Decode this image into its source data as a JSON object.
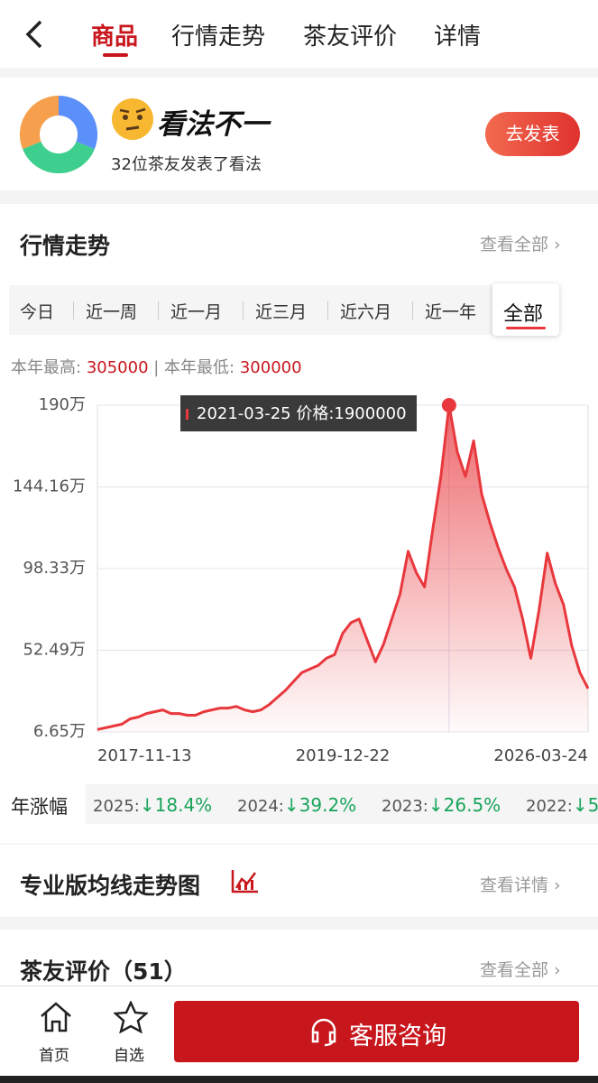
{
  "tabs": [
    "商品",
    "行情走势",
    "茶友评价",
    "详情"
  ],
  "opinion": {
    "title": "看法不一",
    "subtitle": "32位茶友发表了看法",
    "button": "去发表"
  },
  "market": {
    "title": "行情走势",
    "more": "查看全部",
    "ranges": [
      "今日",
      "近一周",
      "近一月",
      "近三月",
      "近六月",
      "近一年",
      "全部"
    ],
    "high_label": "本年最高:",
    "high": 305000,
    "low_label": "本年最低:",
    "low": 300000,
    "chart": {
      "type": "line",
      "color": "#e8383d",
      "categories": [
        "2017-11-13",
        null,
        null,
        null,
        null,
        null,
        null,
        null,
        null,
        null,
        null,
        null,
        null,
        null,
        null,
        null,
        null,
        null,
        null,
        null,
        null,
        null,
        null,
        null,
        null,
        null,
        null,
        null,
        null,
        null,
        "2019-12-22",
        null,
        null,
        null,
        null,
        null,
        null,
        null,
        null,
        null,
        null,
        null,
        null,
        null,
        null,
        null,
        null,
        null,
        null,
        null,
        null,
        null,
        null,
        null,
        null,
        null,
        null,
        null,
        null,
        null,
        "2026-03-24"
      ],
      "values": [
        8,
        9,
        10,
        11,
        14,
        15,
        17,
        18,
        19,
        17,
        17,
        16,
        16,
        18,
        19,
        20,
        20,
        21,
        19,
        18,
        19,
        22,
        26,
        30,
        35,
        40,
        42,
        44,
        48,
        50,
        62,
        68,
        70,
        58,
        46,
        56,
        70,
        84,
        108,
        96,
        88,
        120,
        150,
        190,
        164,
        150,
        170,
        140,
        124,
        110,
        98,
        88,
        70,
        48,
        75,
        107,
        90,
        78,
        55,
        40,
        31
      ],
      "ylim": [
        6.65,
        190
      ],
      "yticks": [
        {
          "value": 6.65,
          "label": "6.65万"
        },
        {
          "value": 52.49,
          "label": "52.49万"
        },
        {
          "value": 98.33,
          "label": "98.33万"
        },
        {
          "value": 144.16,
          "label": "144.16万"
        },
        {
          "value": 190,
          "label": "190万"
        }
      ],
      "grid": true,
      "tooltip": "2021-03-25 价格:1900000"
    },
    "growth_label": "年涨幅",
    "growth": [
      {
        "year": "2025:",
        "change": "↓18.4%"
      },
      {
        "year": "2024:",
        "change": "↓39.2%"
      },
      {
        "year": "2023:",
        "change": "↓26.5%"
      },
      {
        "year": "2022:",
        "change": "↓5"
      }
    ]
  },
  "pro": {
    "title": "专业版均线走势图",
    "more": "查看详情"
  },
  "reviews": {
    "title": "茶友评价（51）",
    "more": "查看全部"
  },
  "bottom": {
    "home": "首页",
    "favorite": "自选",
    "service": "客服咨询"
  }
}
